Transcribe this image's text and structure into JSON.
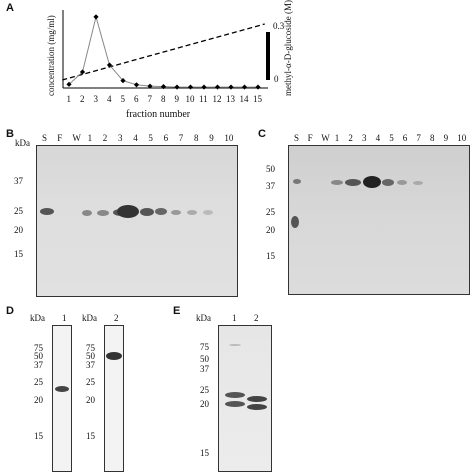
{
  "panels": {
    "A": {
      "letter": "A",
      "ylabel": "concentration (mg/ml)",
      "y2label": "methyl-α-D-glucoside (M)",
      "y2ticks": [
        "0.3",
        "0"
      ],
      "xlabel": "fraction number",
      "xticks": [
        "1",
        "2",
        "3",
        "4",
        "5",
        "6",
        "7",
        "8",
        "9",
        "10",
        "11",
        "12",
        "13",
        "14",
        "15"
      ]
    },
    "B": {
      "letter": "B",
      "unit": "kDa",
      "lanes": [
        "S",
        "F",
        "W",
        "1",
        "2",
        "3",
        "4",
        "5",
        "6",
        "7",
        "8",
        "9",
        "10"
      ],
      "markers": [
        "37",
        "25",
        "20",
        "15"
      ]
    },
    "C": {
      "letter": "C",
      "lanes": [
        "S",
        "F",
        "W",
        "1",
        "2",
        "3",
        "4",
        "5",
        "6",
        "7",
        "8",
        "9",
        "10"
      ],
      "markers": [
        "50",
        "37",
        "25",
        "20",
        "15"
      ]
    },
    "D": {
      "letter": "D",
      "unit": "kDa",
      "lane1": "1",
      "lane2": "2",
      "markers": [
        "75",
        "50",
        "37",
        "25",
        "20",
        "15"
      ]
    },
    "E": {
      "letter": "E",
      "unit": "kDa",
      "lanes": [
        "1",
        "2"
      ],
      "markers": [
        "75",
        "50",
        "37",
        "25",
        "20",
        "15"
      ]
    }
  },
  "chart_data": {
    "type": "line",
    "xlabel": "fraction number",
    "ylabel": "concentration (mg/ml)",
    "y2label": "methyl-α-D-glucoside (M)",
    "x": [
      1,
      2,
      3,
      4,
      5,
      6,
      7,
      8,
      9,
      10,
      11,
      12,
      13,
      14,
      15
    ],
    "series": [
      {
        "values": [
          0.08,
          0.35,
          1.55,
          0.5,
          0.16,
          0.07,
          0.04,
          0.03,
          0.02,
          0.02,
          0.02,
          0.02,
          0.02,
          0.02,
          0.02
        ]
      },
      {
        "axis": "right",
        "style": "dashed",
        "x_range": [
          0.5,
          15.5
        ],
        "values_range": [
          0,
          0.3
        ]
      }
    ],
    "y2lim": [
      0,
      0.3
    ],
    "grid": false
  }
}
